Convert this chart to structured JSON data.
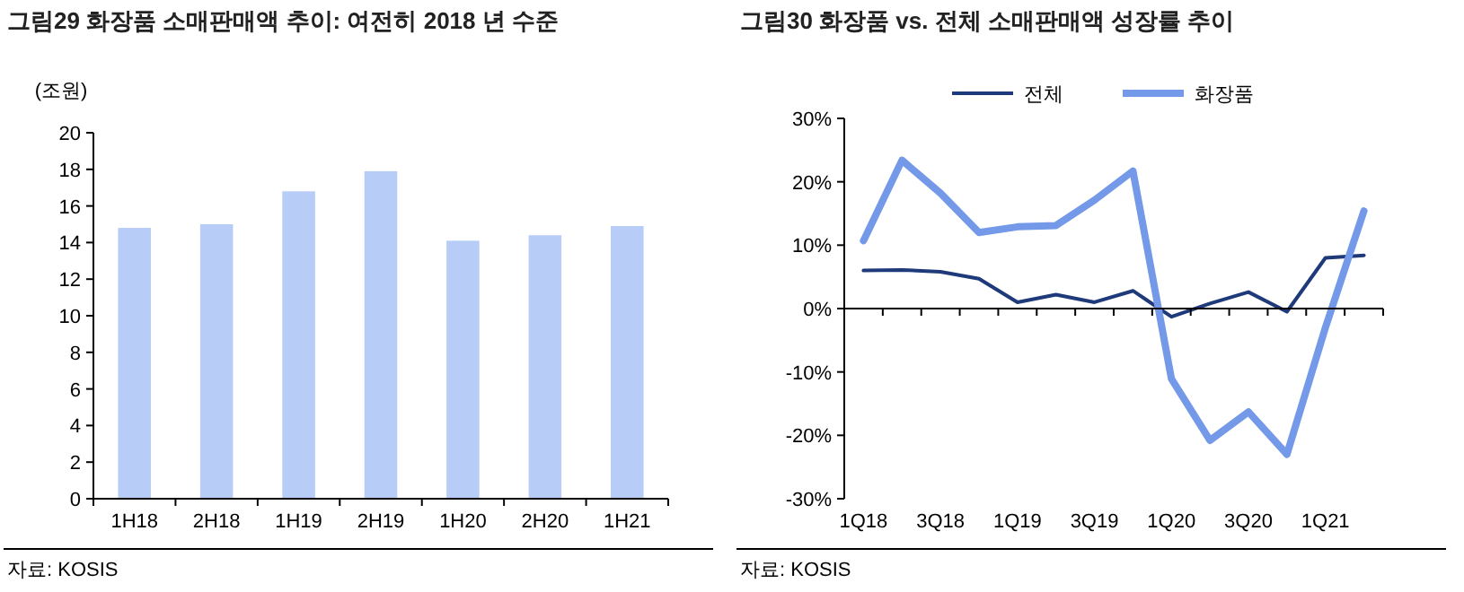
{
  "chart_data": [
    {
      "type": "bar",
      "title": "그림29 화장품 소매판매액 추이: 여전히 2018 년 수준",
      "ylabel": "(조원)",
      "categories": [
        "1H18",
        "2H18",
        "1H19",
        "2H19",
        "1H20",
        "2H20",
        "1H21"
      ],
      "values": [
        14.8,
        15.0,
        16.8,
        17.9,
        14.1,
        14.4,
        14.9
      ],
      "color": "#b7cdf7",
      "ylim": [
        0,
        20
      ],
      "yticks": [
        0,
        2,
        4,
        6,
        8,
        10,
        12,
        14,
        16,
        18,
        20
      ],
      "annotations": [
        "자료: KOSIS"
      ]
    },
    {
      "type": "line",
      "title": "그림30 화장품 vs. 전체 소매판매액 성장률 추이",
      "categories": [
        "1Q18",
        null,
        "3Q18",
        null,
        "1Q19",
        null,
        "3Q19",
        null,
        "1Q20",
        null,
        "3Q20",
        null,
        "1Q21",
        null
      ],
      "series": [
        {
          "name": "전체",
          "color": "#1f3a7a",
          "values": [
            6.0,
            6.1,
            5.8,
            4.7,
            1.0,
            2.2,
            1.0,
            2.8,
            -1.3,
            0.8,
            2.6,
            -0.5,
            8.0,
            8.4
          ]
        },
        {
          "name": "화장품",
          "color": "#7399e8",
          "values": [
            10.7,
            23.4,
            18.2,
            12.0,
            12.9,
            13.1,
            17.1,
            21.7,
            -11.1,
            -20.8,
            -16.3,
            -23.0,
            -3.0,
            15.4
          ]
        }
      ],
      "ylim": [
        -30,
        30
      ],
      "yticks": [
        {
          "value": -30,
          "label": "-30%"
        },
        {
          "value": -20,
          "label": "-20%"
        },
        {
          "value": -10,
          "label": "-10%"
        },
        {
          "value": 0,
          "label": "0%"
        },
        {
          "value": 10,
          "label": "10%"
        },
        {
          "value": 20,
          "label": "20%"
        },
        {
          "value": 30,
          "label": "30%"
        }
      ],
      "legend": "top",
      "marker": "none",
      "line_style": "solid",
      "annotations": [
        "자료: KOSIS"
      ]
    }
  ]
}
